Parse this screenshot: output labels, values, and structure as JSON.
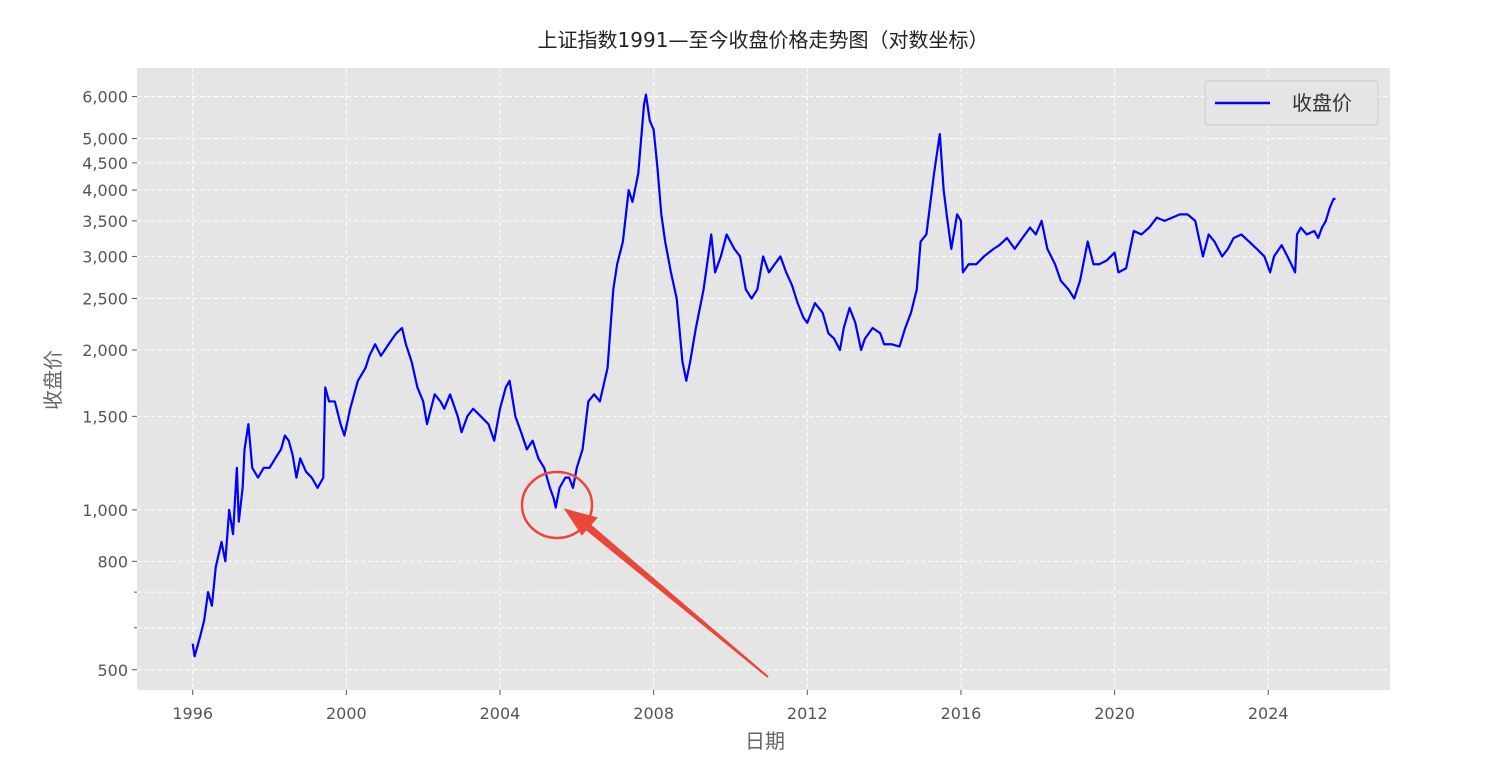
{
  "chart_data": {
    "type": "line",
    "title": "上证指数1991—至今收盘价格走势图（对数坐标）",
    "x_label": "日期",
    "y_label": "收盘价",
    "log_scale_y": true,
    "grid": true,
    "legend_position": "upper right",
    "xlim": [
      1994.55,
      2027.17
    ],
    "ylim": [
      458,
      6790
    ],
    "xticks": [
      1996,
      2000,
      2004,
      2008,
      2012,
      2016,
      2020,
      2024
    ],
    "yticks": [
      500,
      800,
      {
        "value": 1000,
        "label": "1,000"
      },
      {
        "value": 1500,
        "label": "1,500"
      },
      {
        "value": 2000,
        "label": "2,000"
      },
      {
        "value": 2500,
        "label": "2,500"
      },
      {
        "value": 3000,
        "label": "3,000"
      },
      {
        "value": 3500,
        "label": "3,500"
      },
      {
        "value": 4000,
        "label": "4,000"
      },
      {
        "value": 4500,
        "label": "4,500"
      },
      {
        "value": 5000,
        "label": "5,000"
      },
      {
        "value": 6000,
        "label": "6,000"
      }
    ],
    "yminorticks": [
      600,
      700
    ],
    "x": [
      1996.0,
      1996.05,
      1996.2,
      1996.3,
      1996.4,
      1996.5,
      1996.6,
      1996.75,
      1996.85,
      1996.95,
      1997.05,
      1997.15,
      1997.2,
      1997.3,
      1997.35,
      1997.45,
      1997.55,
      1997.7,
      1997.85,
      1998.0,
      1998.15,
      1998.3,
      1998.4,
      1998.5,
      1998.6,
      1998.7,
      1998.8,
      1998.95,
      1999.1,
      1999.25,
      1999.4,
      1999.45,
      1999.55,
      1999.7,
      1999.85,
      1999.95,
      2000.1,
      2000.3,
      2000.5,
      2000.6,
      2000.75,
      2000.9,
      2001.1,
      2001.3,
      2001.45,
      2001.55,
      2001.7,
      2001.85,
      2002.0,
      2002.1,
      2002.3,
      2002.45,
      2002.55,
      2002.7,
      2002.9,
      2003.0,
      2003.15,
      2003.3,
      2003.5,
      2003.7,
      2003.85,
      2004.0,
      2004.15,
      2004.25,
      2004.4,
      2004.55,
      2004.7,
      2004.85,
      2005.0,
      2005.15,
      2005.3,
      2005.4,
      2005.45,
      2005.55,
      2005.7,
      2005.8,
      2005.9,
      2006.0,
      2006.15,
      2006.3,
      2006.45,
      2006.6,
      2006.8,
      2006.95,
      2007.05,
      2007.2,
      2007.35,
      2007.45,
      2007.6,
      2007.75,
      2007.8,
      2007.9,
      2008.0,
      2008.1,
      2008.2,
      2008.3,
      2008.45,
      2008.6,
      2008.75,
      2008.85,
      2008.95,
      2009.1,
      2009.3,
      2009.5,
      2009.6,
      2009.75,
      2009.9,
      2010.1,
      2010.25,
      2010.4,
      2010.55,
      2010.7,
      2010.85,
      2011.0,
      2011.15,
      2011.3,
      2011.45,
      2011.6,
      2011.75,
      2011.9,
      2012.0,
      2012.2,
      2012.4,
      2012.55,
      2012.7,
      2012.85,
      2012.95,
      2013.1,
      2013.25,
      2013.4,
      2013.5,
      2013.7,
      2013.9,
      2014.0,
      2014.2,
      2014.4,
      2014.55,
      2014.7,
      2014.85,
      2014.95,
      2015.1,
      2015.3,
      2015.45,
      2015.55,
      2015.65,
      2015.75,
      2015.9,
      2016.0,
      2016.05,
      2016.2,
      2016.4,
      2016.6,
      2016.85,
      2017.0,
      2017.2,
      2017.4,
      2017.6,
      2017.8,
      2017.95,
      2018.1,
      2018.25,
      2018.45,
      2018.6,
      2018.8,
      2018.95,
      2019.1,
      2019.3,
      2019.45,
      2019.6,
      2019.8,
      2020.0,
      2020.1,
      2020.3,
      2020.5,
      2020.7,
      2020.9,
      2021.1,
      2021.3,
      2021.5,
      2021.7,
      2021.9,
      2022.1,
      2022.3,
      2022.45,
      2022.6,
      2022.8,
      2022.95,
      2023.1,
      2023.3,
      2023.5,
      2023.7,
      2023.9,
      2024.05,
      2024.15,
      2024.35,
      2024.5,
      2024.65,
      2024.7,
      2024.75,
      2024.85,
      2025.0,
      2025.2,
      2025.3,
      2025.4,
      2025.5,
      2025.6,
      2025.7,
      2025.75
    ],
    "series": [
      {
        "name": "收盘价",
        "color": "#0000ff",
        "values": [
          560,
          530,
          580,
          620,
          700,
          660,
          780,
          870,
          800,
          1000,
          900,
          1200,
          950,
          1100,
          1300,
          1450,
          1200,
          1150,
          1200,
          1200,
          1250,
          1300,
          1380,
          1350,
          1270,
          1150,
          1250,
          1180,
          1150,
          1100,
          1150,
          1700,
          1600,
          1600,
          1450,
          1380,
          1550,
          1750,
          1850,
          1950,
          2050,
          1950,
          2050,
          2150,
          2200,
          2050,
          1900,
          1700,
          1600,
          1450,
          1650,
          1600,
          1550,
          1650,
          1500,
          1400,
          1500,
          1550,
          1500,
          1450,
          1350,
          1550,
          1700,
          1750,
          1500,
          1400,
          1300,
          1350,
          1250,
          1200,
          1100,
          1050,
          1010,
          1100,
          1150,
          1150,
          1100,
          1200,
          1300,
          1600,
          1650,
          1600,
          1850,
          2600,
          2900,
          3200,
          4000,
          3800,
          4300,
          5800,
          6050,
          5400,
          5200,
          4400,
          3600,
          3200,
          2800,
          2500,
          1900,
          1750,
          1900,
          2200,
          2600,
          3300,
          2800,
          3000,
          3300,
          3100,
          3000,
          2600,
          2500,
          2600,
          3000,
          2800,
          2900,
          3000,
          2800,
          2650,
          2450,
          2300,
          2250,
          2450,
          2350,
          2150,
          2100,
          2000,
          2200,
          2400,
          2250,
          2000,
          2100,
          2200,
          2150,
          2050,
          2050,
          2030,
          2200,
          2350,
          2600,
          3200,
          3300,
          4300,
          5100,
          4000,
          3500,
          3100,
          3600,
          3500,
          2800,
          2900,
          2900,
          3000,
          3100,
          3150,
          3250,
          3100,
          3250,
          3400,
          3300,
          3500,
          3100,
          2900,
          2700,
          2600,
          2500,
          2700,
          3200,
          2900,
          2900,
          2950,
          3050,
          2800,
          2850,
          3350,
          3300,
          3400,
          3550,
          3500,
          3550,
          3600,
          3600,
          3500,
          3000,
          3300,
          3200,
          3000,
          3100,
          3250,
          3300,
          3200,
          3100,
          3000,
          2800,
          3000,
          3150,
          3000,
          2850,
          2800,
          3300,
          3400,
          3300,
          3350,
          3250,
          3400,
          3500,
          3700,
          3850,
          3850
        ]
      }
    ]
  }
}
